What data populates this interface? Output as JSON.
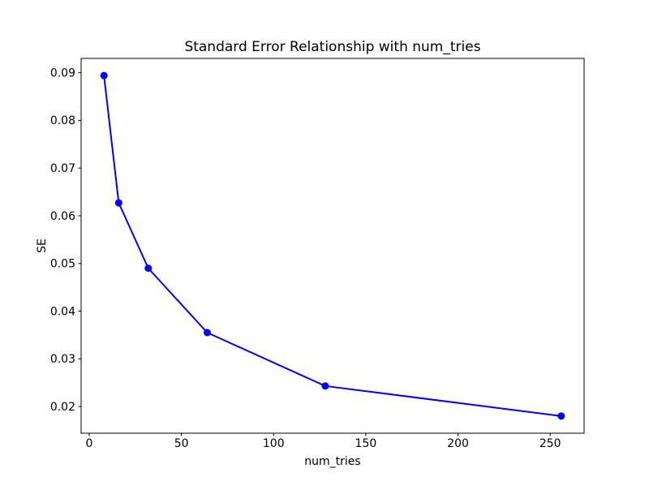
{
  "figure": {
    "background": "#ffffff"
  },
  "chart_data": {
    "type": "line",
    "title": "Standard Error Relationship with num_tries",
    "xlabel": "num_tries",
    "ylabel": "SE",
    "x": [
      8,
      16,
      32,
      64,
      128,
      256
    ],
    "y": [
      0.0894,
      0.0627,
      0.049,
      0.0355,
      0.0243,
      0.018
    ],
    "series": [
      {
        "name": "SE",
        "x": [
          8,
          16,
          32,
          64,
          128,
          256
        ],
        "values": [
          0.0894,
          0.0627,
          0.049,
          0.0355,
          0.0243,
          0.018
        ]
      }
    ],
    "x_ticks": [
      0,
      50,
      100,
      150,
      200,
      250
    ],
    "y_ticks": [
      0.02,
      0.03,
      0.04,
      0.05,
      0.06,
      0.07,
      0.08,
      0.09
    ],
    "xlim": [
      -4.4,
      268.4
    ],
    "ylim": [
      0.0144,
      0.093
    ],
    "grid": false,
    "legend": null,
    "line_color": "#0000ff",
    "marker": "o",
    "axis_color": "#000000"
  }
}
